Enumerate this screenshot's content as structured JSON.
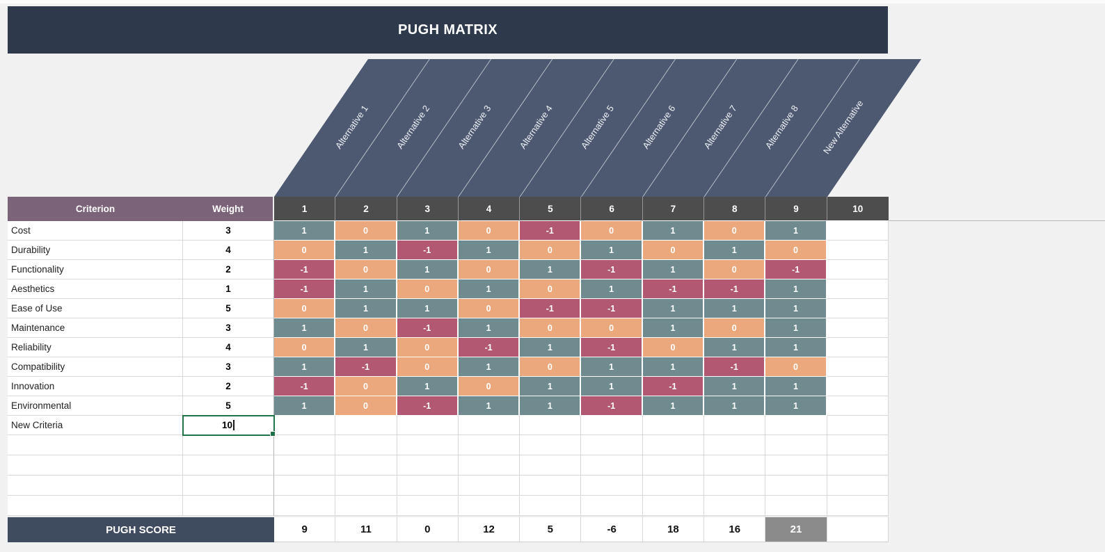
{
  "title": "PUGH MATRIX",
  "alternatives": [
    "Alternative 1",
    "Alternative 2",
    "Alternative 3",
    "Alternative 4",
    "Alternative 5",
    "Alternative 6",
    "Alternative 7",
    "Alternative 8",
    "New Alternative"
  ],
  "table": {
    "criterion_header": "Criterion",
    "weight_header": "Weight",
    "column_numbers": [
      "1",
      "2",
      "3",
      "4",
      "5",
      "6",
      "7",
      "8",
      "9",
      "10"
    ],
    "rows": [
      {
        "criterion": "Cost",
        "weight": "3",
        "values": [
          "1",
          "0",
          "1",
          "0",
          "-1",
          "0",
          "1",
          "0",
          "1",
          ""
        ]
      },
      {
        "criterion": "Durability",
        "weight": "4",
        "values": [
          "0",
          "1",
          "-1",
          "1",
          "0",
          "1",
          "0",
          "1",
          "0",
          ""
        ]
      },
      {
        "criterion": "Functionality",
        "weight": "2",
        "values": [
          "-1",
          "0",
          "1",
          "0",
          "1",
          "-1",
          "1",
          "0",
          "-1",
          ""
        ]
      },
      {
        "criterion": "Aesthetics",
        "weight": "1",
        "values": [
          "-1",
          "1",
          "0",
          "1",
          "0",
          "1",
          "-1",
          "-1",
          "1",
          ""
        ]
      },
      {
        "criterion": "Ease of Use",
        "weight": "5",
        "values": [
          "0",
          "1",
          "1",
          "0",
          "-1",
          "-1",
          "1",
          "1",
          "1",
          ""
        ]
      },
      {
        "criterion": "Maintenance",
        "weight": "3",
        "values": [
          "1",
          "0",
          "-1",
          "1",
          "0",
          "0",
          "1",
          "0",
          "1",
          ""
        ]
      },
      {
        "criterion": "Reliability",
        "weight": "4",
        "values": [
          "0",
          "1",
          "0",
          "-1",
          "1",
          "-1",
          "0",
          "1",
          "1",
          ""
        ]
      },
      {
        "criterion": "Compatibility",
        "weight": "3",
        "values": [
          "1",
          "-1",
          "0",
          "1",
          "0",
          "1",
          "1",
          "-1",
          "0",
          ""
        ]
      },
      {
        "criterion": "Innovation",
        "weight": "2",
        "values": [
          "-1",
          "0",
          "1",
          "0",
          "1",
          "1",
          "-1",
          "1",
          "1",
          ""
        ]
      },
      {
        "criterion": "Environmental",
        "weight": "5",
        "values": [
          "1",
          "0",
          "-1",
          "1",
          "1",
          "-1",
          "1",
          "1",
          "1",
          ""
        ]
      },
      {
        "criterion": "New Criteria",
        "weight": "10",
        "values": [
          "",
          "",
          "",
          "",
          "",
          "",
          "",
          "",
          "",
          ""
        ],
        "editing": true
      }
    ],
    "empty_row_count": 4,
    "score_label": "PUGH SCORE",
    "scores": [
      "9",
      "11",
      "0",
      "12",
      "5",
      "-6",
      "18",
      "16",
      "21",
      ""
    ],
    "score_highlight_index": 8
  },
  "colors": {
    "title_bar": "#2e3a4c",
    "alternatives_band": "#4d5970",
    "column_header": "#4d4d4d",
    "criterion_header": "#7b6479",
    "positive": "#6f8b8f",
    "zero": "#eba87d",
    "negative": "#b25873",
    "score_bar": "#3f4b5e",
    "score_highlight": "#8b8b8b",
    "selection_border": "#217346"
  }
}
